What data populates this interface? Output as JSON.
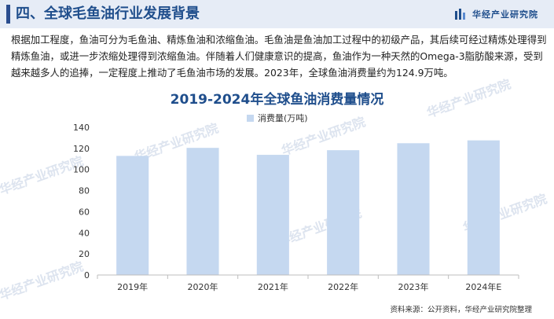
{
  "header": {
    "title": "四、全球毛鱼油行业发展背景",
    "brand_name": "华经产业研究院"
  },
  "intro_text": "根据加工程度，鱼油可分为毛鱼油、精炼鱼油和浓缩鱼油。毛鱼油是鱼油加工过程中的初级产品，其后续可经过精炼处理得到精炼鱼油，或进一步浓缩处理得到浓缩鱼油。伴随着人们健康意识的提高，鱼油作为一种天然的Omega-3脂肪酸来源，受到越来越多人的追捧，一定程度上推动了毛鱼油市场的发展。2023年，全球鱼油消费量约为124.9万吨。",
  "watermark": "华经产业研究院",
  "source": "资料来源：公开资料，华经产业研究院整理",
  "colors": {
    "bar": "#c5d8f0",
    "title": "#1f4e8c",
    "header_bg": "#e6ecf6"
  },
  "chart_data": {
    "type": "bar",
    "title": "2019-2024年全球鱼油消费量情况",
    "categories": [
      "2019年",
      "2020年",
      "2021年",
      "2022年",
      "2023年",
      "2024年E"
    ],
    "series": [
      {
        "name": "消费量(万吨)",
        "values": [
          112.9,
          120.5,
          113.9,
          118.3,
          124.9,
          127.6
        ]
      }
    ],
    "ylim": [
      0,
      140
    ],
    "yticks": [
      0,
      20,
      40,
      60,
      80,
      100,
      120,
      140
    ],
    "ytick_labels": [
      "0",
      "20",
      "40",
      "60",
      "80",
      "100",
      "120",
      "140"
    ],
    "grid": false,
    "legend_position": "top-center"
  }
}
